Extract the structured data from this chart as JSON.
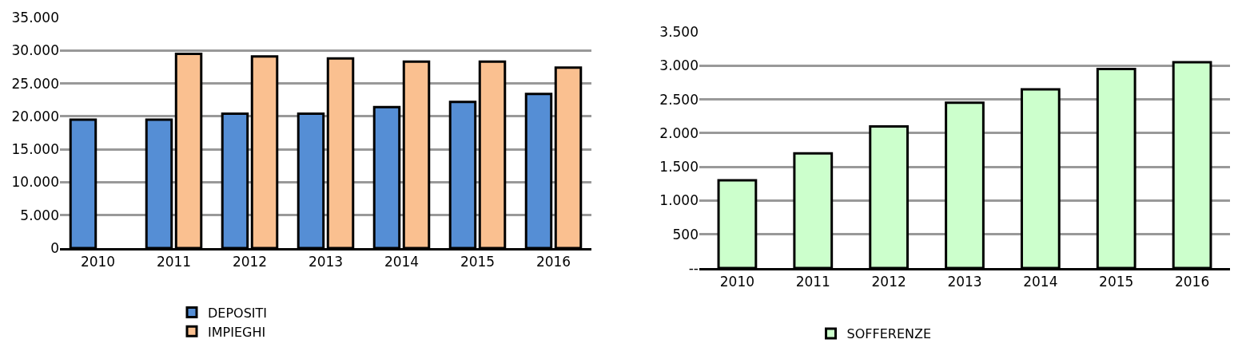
{
  "chart_data": [
    {
      "type": "bar",
      "categories": [
        "2010",
        "2011",
        "2012",
        "2013",
        "2014",
        "2015",
        "2016"
      ],
      "series": [
        {
          "name": "DEPOSITI",
          "color": "#558ed5",
          "values": [
            19500,
            19500,
            20400,
            20400,
            21400,
            22200,
            23400
          ]
        },
        {
          "name": "IMPIEGHI",
          "color": "#fac090",
          "values": [
            null,
            29500,
            29100,
            28800,
            28300,
            28300,
            27400
          ]
        }
      ],
      "ylim": [
        0,
        35000
      ],
      "yticks": [
        {
          "value": 0,
          "label": "0"
        },
        {
          "value": 5000,
          "label": "5.000"
        },
        {
          "value": 10000,
          "label": "10.000"
        },
        {
          "value": 15000,
          "label": "15.000"
        },
        {
          "value": 20000,
          "label": "20.000"
        },
        {
          "value": 25000,
          "label": "25.000"
        },
        {
          "value": 30000,
          "label": "30.000"
        },
        {
          "value": 35000,
          "label": "35.000"
        }
      ],
      "grid": "y",
      "legend": "bottom"
    },
    {
      "type": "bar",
      "categories": [
        "2010",
        "2011",
        "2012",
        "2013",
        "2014",
        "2015",
        "2016"
      ],
      "series": [
        {
          "name": "SOFFERENZE",
          "color": "#ccffcc",
          "values": [
            1300,
            1700,
            2100,
            2450,
            2650,
            2950,
            3050
          ]
        }
      ],
      "ylim": [
        0,
        3500
      ],
      "yticks": [
        {
          "value": 0,
          "label": "--"
        },
        {
          "value": 500,
          "label": "500"
        },
        {
          "value": 1000,
          "label": "1.000"
        },
        {
          "value": 1500,
          "label": "1.500"
        },
        {
          "value": 2000,
          "label": "2.000"
        },
        {
          "value": 2500,
          "label": "2.500"
        },
        {
          "value": 3000,
          "label": "3.000"
        },
        {
          "value": 3500,
          "label": "3.500"
        }
      ],
      "grid": "y",
      "legend": "bottom"
    }
  ]
}
